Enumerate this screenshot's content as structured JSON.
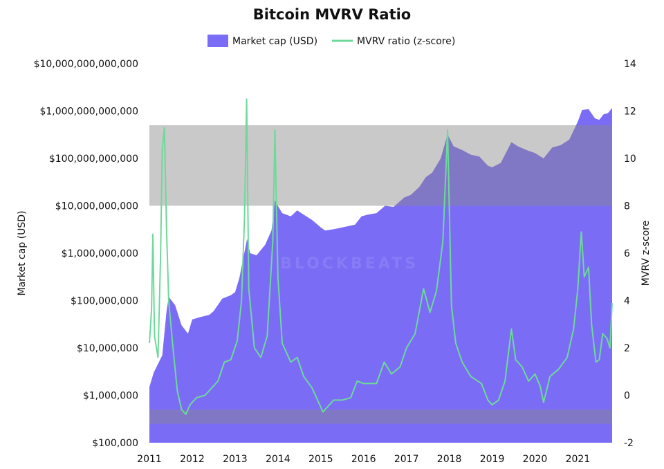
{
  "colors": {
    "market_cap": "#7B6CF6",
    "mvrv": "#6ED99A",
    "zone": "#888888",
    "background": "#ffffff"
  },
  "watermark": {
    "text": "BLOCKBEATS"
  },
  "chart_data": {
    "type": "area",
    "title": "Bitcoin MVRV Ratio",
    "legend": {
      "placement": "top-center"
    },
    "grid": false,
    "x_ticks": [
      "2011",
      "2012",
      "2013",
      "2014",
      "2015",
      "2016",
      "2017",
      "2018",
      "2019",
      "2020",
      "2021"
    ],
    "xlim": [
      2011.0,
      2021.8
    ],
    "y_left": {
      "label": "Market cap (USD)",
      "scale": "log",
      "range": [
        100000,
        10000000000000
      ],
      "ticks": [
        {
          "value": 100000,
          "label": "$100,000"
        },
        {
          "value": 1000000,
          "label": "$1,000,000"
        },
        {
          "value": 10000000,
          "label": "$10,000,000"
        },
        {
          "value": 100000000,
          "label": "$100,000,000"
        },
        {
          "value": 1000000000,
          "label": "$1,000,000,000"
        },
        {
          "value": 10000000000,
          "label": "$10,000,000,000"
        },
        {
          "value": 100000000000,
          "label": "$100,000,000,000"
        },
        {
          "value": 1000000000000,
          "label": "$1,000,000,000,000"
        },
        {
          "value": 10000000000000,
          "label": "$10,000,000,000,000"
        }
      ]
    },
    "y_right": {
      "label": "MVRV z-score",
      "range": [
        -2,
        14
      ],
      "ticks": [
        {
          "value": -2,
          "label": "-2"
        },
        {
          "value": 0,
          "label": "0"
        },
        {
          "value": 2,
          "label": "2"
        },
        {
          "value": 4,
          "label": "4"
        },
        {
          "value": 6,
          "label": "6"
        },
        {
          "value": 8,
          "label": "8"
        },
        {
          "value": 10,
          "label": "10"
        },
        {
          "value": 12,
          "label": "12"
        },
        {
          "value": 14,
          "label": "14"
        }
      ]
    },
    "zones": [
      {
        "axis": "right",
        "from": 8,
        "to": 11.4
      },
      {
        "axis": "right",
        "from": -1.2,
        "to": -0.6
      }
    ],
    "series": [
      {
        "name": "Market cap (USD)",
        "type": "area",
        "axis": "left",
        "points": [
          [
            2011.0,
            1500000
          ],
          [
            2011.1,
            3000000
          ],
          [
            2011.3,
            7000000
          ],
          [
            2011.4,
            60000000
          ],
          [
            2011.45,
            120000000
          ],
          [
            2011.6,
            80000000
          ],
          [
            2011.75,
            30000000
          ],
          [
            2011.9,
            20000000
          ],
          [
            2012.0,
            40000000
          ],
          [
            2012.2,
            45000000
          ],
          [
            2012.4,
            50000000
          ],
          [
            2012.5,
            60000000
          ],
          [
            2012.7,
            110000000
          ],
          [
            2012.9,
            130000000
          ],
          [
            2013.0,
            150000000
          ],
          [
            2013.1,
            300000000
          ],
          [
            2013.28,
            2000000000
          ],
          [
            2013.35,
            1000000000
          ],
          [
            2013.5,
            900000000
          ],
          [
            2013.7,
            1500000000
          ],
          [
            2013.85,
            3000000000
          ],
          [
            2013.93,
            13000000000
          ],
          [
            2014.0,
            10000000000
          ],
          [
            2014.1,
            7000000000
          ],
          [
            2014.3,
            6000000000
          ],
          [
            2014.45,
            8000000000
          ],
          [
            2014.6,
            6500000000
          ],
          [
            2014.8,
            5000000000
          ],
          [
            2015.0,
            3500000000
          ],
          [
            2015.1,
            3000000000
          ],
          [
            2015.3,
            3200000000
          ],
          [
            2015.5,
            3500000000
          ],
          [
            2015.8,
            4000000000
          ],
          [
            2015.95,
            6000000000
          ],
          [
            2016.1,
            6500000000
          ],
          [
            2016.3,
            7000000000
          ],
          [
            2016.5,
            10000000000
          ],
          [
            2016.7,
            9500000000
          ],
          [
            2016.95,
            15000000000
          ],
          [
            2017.1,
            17000000000
          ],
          [
            2017.3,
            25000000000
          ],
          [
            2017.45,
            40000000000
          ],
          [
            2017.6,
            50000000000
          ],
          [
            2017.8,
            100000000000
          ],
          [
            2017.96,
            320000000000
          ],
          [
            2018.1,
            180000000000
          ],
          [
            2018.3,
            150000000000
          ],
          [
            2018.5,
            120000000000
          ],
          [
            2018.7,
            110000000000
          ],
          [
            2018.9,
            70000000000
          ],
          [
            2019.0,
            65000000000
          ],
          [
            2019.2,
            80000000000
          ],
          [
            2019.45,
            220000000000
          ],
          [
            2019.6,
            180000000000
          ],
          [
            2019.8,
            150000000000
          ],
          [
            2020.0,
            130000000000
          ],
          [
            2020.2,
            100000000000
          ],
          [
            2020.4,
            170000000000
          ],
          [
            2020.6,
            190000000000
          ],
          [
            2020.8,
            250000000000
          ],
          [
            2021.0,
            600000000000
          ],
          [
            2021.1,
            1050000000000
          ],
          [
            2021.25,
            1100000000000
          ],
          [
            2021.4,
            700000000000
          ],
          [
            2021.5,
            650000000000
          ],
          [
            2021.6,
            850000000000
          ],
          [
            2021.7,
            900000000000
          ],
          [
            2021.8,
            1150000000000
          ]
        ]
      },
      {
        "name": "MVRV ratio (z-score)",
        "type": "line",
        "axis": "right",
        "points": [
          [
            2011.0,
            2.2
          ],
          [
            2011.05,
            3.6
          ],
          [
            2011.08,
            6.8
          ],
          [
            2011.12,
            2.5
          ],
          [
            2011.2,
            1.6
          ],
          [
            2011.26,
            5.8
          ],
          [
            2011.3,
            10.4
          ],
          [
            2011.35,
            11.3
          ],
          [
            2011.4,
            7.0
          ],
          [
            2011.45,
            4.0
          ],
          [
            2011.55,
            2.0
          ],
          [
            2011.65,
            0.2
          ],
          [
            2011.75,
            -0.6
          ],
          [
            2011.85,
            -0.8
          ],
          [
            2011.95,
            -0.4
          ],
          [
            2012.1,
            -0.1
          ],
          [
            2012.3,
            0.0
          ],
          [
            2012.45,
            0.3
          ],
          [
            2012.6,
            0.6
          ],
          [
            2012.75,
            1.4
          ],
          [
            2012.9,
            1.5
          ],
          [
            2013.05,
            2.3
          ],
          [
            2013.15,
            4.0
          ],
          [
            2013.22,
            7.5
          ],
          [
            2013.27,
            12.5
          ],
          [
            2013.32,
            4.5
          ],
          [
            2013.45,
            2.0
          ],
          [
            2013.6,
            1.6
          ],
          [
            2013.75,
            2.5
          ],
          [
            2013.88,
            6.5
          ],
          [
            2013.93,
            11.2
          ],
          [
            2014.0,
            5.0
          ],
          [
            2014.1,
            2.2
          ],
          [
            2014.3,
            1.4
          ],
          [
            2014.45,
            1.6
          ],
          [
            2014.6,
            0.8
          ],
          [
            2014.8,
            0.3
          ],
          [
            2014.95,
            -0.3
          ],
          [
            2015.05,
            -0.7
          ],
          [
            2015.3,
            -0.2
          ],
          [
            2015.5,
            -0.2
          ],
          [
            2015.7,
            -0.1
          ],
          [
            2015.85,
            0.6
          ],
          [
            2016.0,
            0.5
          ],
          [
            2016.3,
            0.5
          ],
          [
            2016.48,
            1.4
          ],
          [
            2016.65,
            0.9
          ],
          [
            2016.85,
            1.2
          ],
          [
            2017.0,
            2.0
          ],
          [
            2017.2,
            2.6
          ],
          [
            2017.4,
            4.5
          ],
          [
            2017.55,
            3.5
          ],
          [
            2017.7,
            4.4
          ],
          [
            2017.85,
            6.5
          ],
          [
            2017.96,
            11.2
          ],
          [
            2018.05,
            3.8
          ],
          [
            2018.15,
            2.2
          ],
          [
            2018.3,
            1.4
          ],
          [
            2018.5,
            0.8
          ],
          [
            2018.75,
            0.5
          ],
          [
            2018.9,
            -0.2
          ],
          [
            2019.0,
            -0.4
          ],
          [
            2019.15,
            -0.2
          ],
          [
            2019.3,
            0.6
          ],
          [
            2019.45,
            2.8
          ],
          [
            2019.55,
            1.5
          ],
          [
            2019.7,
            1.2
          ],
          [
            2019.85,
            0.6
          ],
          [
            2020.0,
            0.9
          ],
          [
            2020.12,
            0.4
          ],
          [
            2020.2,
            -0.3
          ],
          [
            2020.35,
            0.8
          ],
          [
            2020.55,
            1.1
          ],
          [
            2020.75,
            1.6
          ],
          [
            2020.9,
            2.8
          ],
          [
            2021.0,
            4.5
          ],
          [
            2021.08,
            6.9
          ],
          [
            2021.15,
            5.0
          ],
          [
            2021.25,
            5.4
          ],
          [
            2021.32,
            3.0
          ],
          [
            2021.42,
            1.4
          ],
          [
            2021.5,
            1.5
          ],
          [
            2021.58,
            2.6
          ],
          [
            2021.68,
            2.4
          ],
          [
            2021.75,
            2.0
          ],
          [
            2021.8,
            3.9
          ]
        ]
      }
    ]
  }
}
